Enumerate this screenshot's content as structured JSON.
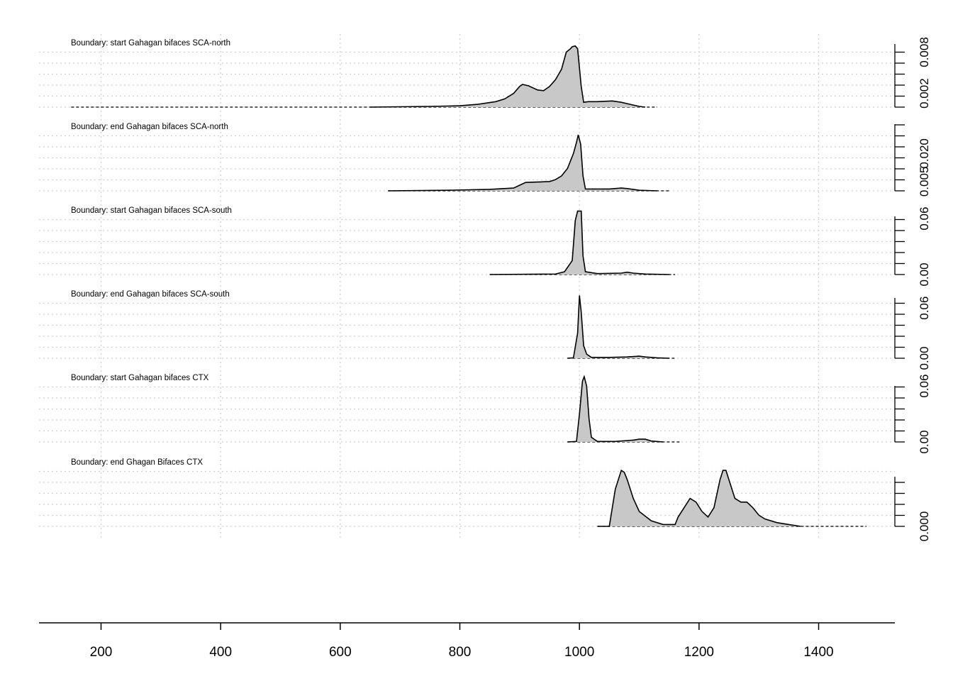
{
  "chart_data": {
    "type": "area",
    "x_ticks": [
      200,
      400,
      600,
      800,
      1000,
      1200,
      1400
    ],
    "xlim": [
      97,
      1523
    ],
    "grid": true,
    "fill_color": "#c8c8c8",
    "series": [
      {
        "name": "Boundary: start Gahagan bifaces SCA-north",
        "baseline_range": [
          150,
          1130
        ],
        "ylim": [
          0,
          0.0095
        ],
        "y_ticks": [
          0.002,
          0.008
        ],
        "y_tick_labels": [
          "0.002",
          "0.008"
        ],
        "points": [
          [
            650,
            0
          ],
          [
            700,
            5e-05
          ],
          [
            750,
            0.0001
          ],
          [
            800,
            0.0002
          ],
          [
            830,
            0.0004
          ],
          [
            860,
            0.0008
          ],
          [
            875,
            0.0012
          ],
          [
            890,
            0.002
          ],
          [
            900,
            0.003
          ],
          [
            905,
            0.0033
          ],
          [
            915,
            0.0031
          ],
          [
            930,
            0.0025
          ],
          [
            940,
            0.0024
          ],
          [
            950,
            0.003
          ],
          [
            960,
            0.004
          ],
          [
            970,
            0.0055
          ],
          [
            978,
            0.008
          ],
          [
            985,
            0.0085
          ],
          [
            988,
            0.0088
          ],
          [
            993,
            0.0089
          ],
          [
            997,
            0.0085
          ],
          [
            1003,
            0.003
          ],
          [
            1007,
            0.0007
          ],
          [
            1015,
            0.0008
          ],
          [
            1030,
            0.0008
          ],
          [
            1055,
            0.0009
          ],
          [
            1070,
            0.0007
          ],
          [
            1085,
            0.0004
          ],
          [
            1100,
            0.0001
          ],
          [
            1110,
            0
          ]
        ]
      },
      {
        "name": "Boundary: end Gahagan bifaces SCA-north",
        "baseline_range": [
          680,
          1150
        ],
        "ylim": [
          0,
          0.035
        ],
        "y_ticks": [
          0.005,
          0.02
        ],
        "y_tick_labels": [
          "0.005",
          "0.020"
        ],
        "points": [
          [
            680,
            0
          ],
          [
            780,
            0.0003
          ],
          [
            850,
            0.0008
          ],
          [
            890,
            0.0015
          ],
          [
            900,
            0.003
          ],
          [
            910,
            0.0045
          ],
          [
            930,
            0.0047
          ],
          [
            950,
            0.005
          ],
          [
            960,
            0.006
          ],
          [
            970,
            0.008
          ],
          [
            980,
            0.012
          ],
          [
            990,
            0.02
          ],
          [
            995,
            0.026
          ],
          [
            998,
            0.03
          ],
          [
            1002,
            0.025
          ],
          [
            1006,
            0.008
          ],
          [
            1010,
            0.001
          ],
          [
            1050,
            0.001
          ],
          [
            1070,
            0.0015
          ],
          [
            1080,
            0.0012
          ],
          [
            1100,
            0.0003
          ],
          [
            1130,
            0
          ]
        ]
      },
      {
        "name": "Boundary: start Gahagan bifaces SCA-south",
        "baseline_range": [
          850,
          1160
        ],
        "ylim": [
          0,
          0.07
        ],
        "y_ticks": [
          0,
          0.06
        ],
        "y_tick_labels": [
          "0.00",
          "0.06"
        ],
        "points": [
          [
            850,
            0
          ],
          [
            960,
            0.0005
          ],
          [
            975,
            0.003
          ],
          [
            988,
            0.015
          ],
          [
            993,
            0.058
          ],
          [
            997,
            0.068
          ],
          [
            1003,
            0.068
          ],
          [
            1006,
            0.02
          ],
          [
            1010,
            0.003
          ],
          [
            1030,
            0.001
          ],
          [
            1070,
            0.0015
          ],
          [
            1080,
            0.0025
          ],
          [
            1090,
            0.0015
          ],
          [
            1110,
            0.0005
          ],
          [
            1150,
            0
          ]
        ]
      },
      {
        "name": "Boundary: end Gahagan bifaces SCA-south",
        "baseline_range": [
          980,
          1160
        ],
        "ylim": [
          0,
          0.078
        ],
        "y_ticks": [
          0,
          0.06
        ],
        "y_tick_labels": [
          "0.00",
          "0.06"
        ],
        "points": [
          [
            980,
            0
          ],
          [
            990,
            0.0005
          ],
          [
            997,
            0.03
          ],
          [
            1000,
            0.075
          ],
          [
            1003,
            0.055
          ],
          [
            1007,
            0.015
          ],
          [
            1012,
            0.005
          ],
          [
            1020,
            0.001
          ],
          [
            1050,
            0.001
          ],
          [
            1080,
            0.0015
          ],
          [
            1100,
            0.0025
          ],
          [
            1110,
            0.0015
          ],
          [
            1130,
            0.0005
          ],
          [
            1150,
            0
          ]
        ]
      },
      {
        "name": "Boundary: start Gahagan bifaces CTX",
        "baseline_range": [
          980,
          1170
        ],
        "ylim": [
          0,
          0.07
        ],
        "y_ticks": [
          0,
          0.06
        ],
        "y_tick_labels": [
          "0.00",
          "0.06"
        ],
        "points": [
          [
            980,
            0
          ],
          [
            995,
            0.0005
          ],
          [
            1000,
            0.03
          ],
          [
            1005,
            0.065
          ],
          [
            1008,
            0.07
          ],
          [
            1012,
            0.06
          ],
          [
            1016,
            0.025
          ],
          [
            1020,
            0.005
          ],
          [
            1030,
            0.0005
          ],
          [
            1060,
            0.0005
          ],
          [
            1090,
            0.002
          ],
          [
            1100,
            0.003
          ],
          [
            1110,
            0.003
          ],
          [
            1120,
            0.001
          ],
          [
            1140,
            0
          ]
        ]
      },
      {
        "name": "Boundary: end Ghagan Bifaces CTX",
        "baseline_range": [
          1030,
          1480
        ],
        "ylim": [
          0,
          0.0035
        ],
        "y_ticks": [
          0
        ],
        "y_tick_labels": [
          "0.000"
        ],
        "points": [
          [
            1030,
            0
          ],
          [
            1050,
            0
          ],
          [
            1055,
            0.001
          ],
          [
            1060,
            0.002
          ],
          [
            1065,
            0.0025
          ],
          [
            1070,
            0.003
          ],
          [
            1075,
            0.0029
          ],
          [
            1080,
            0.0025
          ],
          [
            1090,
            0.0015
          ],
          [
            1100,
            0.0008
          ],
          [
            1120,
            0.0003
          ],
          [
            1140,
            0.0001
          ],
          [
            1160,
            0.0001
          ],
          [
            1165,
            0.0005
          ],
          [
            1175,
            0.001
          ],
          [
            1185,
            0.0015
          ],
          [
            1195,
            0.0013
          ],
          [
            1205,
            0.0008
          ],
          [
            1215,
            0.0005
          ],
          [
            1225,
            0.001
          ],
          [
            1235,
            0.0025
          ],
          [
            1240,
            0.003
          ],
          [
            1245,
            0.003
          ],
          [
            1250,
            0.0025
          ],
          [
            1260,
            0.0015
          ],
          [
            1270,
            0.0013
          ],
          [
            1280,
            0.0013
          ],
          [
            1290,
            0.001
          ],
          [
            1300,
            0.0006
          ],
          [
            1310,
            0.0004
          ],
          [
            1330,
            0.0002
          ],
          [
            1350,
            0.0001
          ],
          [
            1370,
            0
          ]
        ]
      }
    ]
  }
}
